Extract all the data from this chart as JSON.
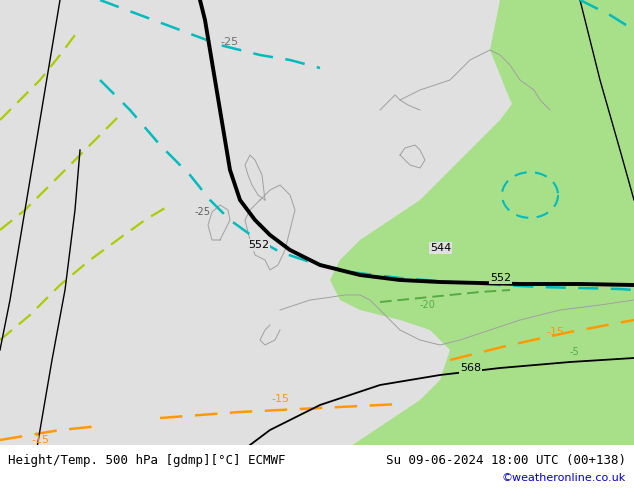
{
  "title_left": "Height/Temp. 500 hPa [gdmp][°C] ECMWF",
  "title_right": "Su 09-06-2024 18:00 UTC (00+138)",
  "credit": "©weatheronline.co.uk",
  "bg_color": "#e0e0e0",
  "green_fill_color": "#a8e08a",
  "credit_color": "#0000cc",
  "label_fontsize": 9,
  "credit_fontsize": 8,
  "fig_width": 6.34,
  "fig_height": 4.9
}
